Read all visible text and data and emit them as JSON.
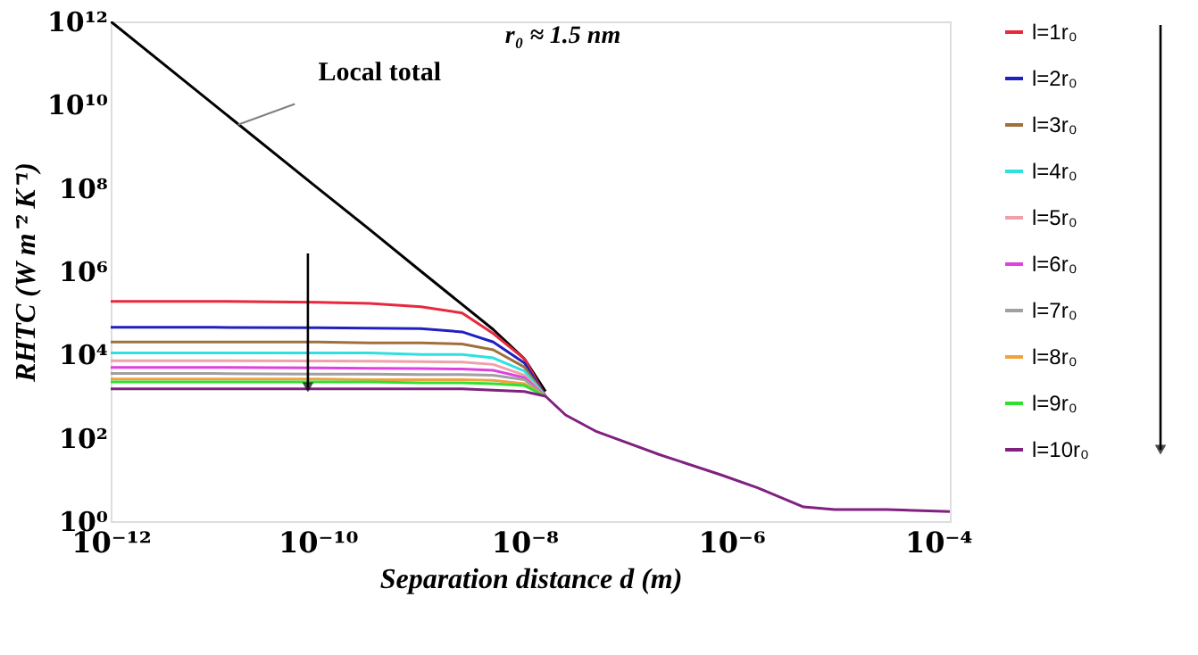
{
  "chart_data": {
    "type": "line",
    "xlabel": "Separation distance d (m)",
    "ylabel": "RHTC (W m⁻² K⁻¹)",
    "annotations": [
      "r₀ ≈ 1.5 nm",
      {
        "text": "Local total",
        "x": 1.7e-11,
        "y": 3300000000.0
      }
    ],
    "x": [
      1e-12,
      1e-11,
      1e-10,
      3.2e-10,
      1e-09,
      2.5e-09,
      5e-09,
      1e-08,
      1.6e-08,
      2.5e-08,
      5e-08,
      2e-07,
      7.9e-07,
      1.8e-06,
      5e-06,
      1e-05,
      3.2e-05,
      0.00013
    ],
    "log": "xy",
    "xlim": [
      1e-12,
      0.00013
    ],
    "ylim": [
      1,
      1000000000000.0
    ],
    "xticks": [
      {
        "value": 1e-12,
        "label": "10⁻¹²"
      },
      {
        "value": 1e-10,
        "label": "10⁻¹⁰"
      },
      {
        "value": 1e-08,
        "label": "10⁻⁸"
      },
      {
        "value": 1e-06,
        "label": "10⁻⁶"
      },
      {
        "value": 0.0001,
        "label": "10⁻⁴"
      }
    ],
    "yticks": [
      {
        "value": 1,
        "label": "10⁰"
      },
      {
        "value": 100,
        "label": "10²"
      },
      {
        "value": 10000.0,
        "label": "10⁴"
      },
      {
        "value": 1000000.0,
        "label": "10⁶"
      },
      {
        "value": 100000000.0,
        "label": "10⁸"
      },
      {
        "value": 10000000000.0,
        "label": "10¹⁰"
      },
      {
        "value": 1000000000000.0,
        "label": "10¹²"
      }
    ],
    "grid": false,
    "legend": "right",
    "line_style": "solid",
    "marker": "none",
    "series": [
      {
        "color": "#000000",
        "values": [
          1000000000000.0,
          10000000000.0,
          100000000.0,
          10000000.0,
          1000000.0,
          160000.0,
          40000.0,
          7900.0,
          1300.0,
          null,
          null,
          null,
          null,
          null,
          null,
          null,
          null,
          null
        ]
      },
      {
        "name": "l=1r₀",
        "color": "#e8283c",
        "values": [
          190000.0,
          190000.0,
          180000.0,
          170000.0,
          140000.0,
          100000.0,
          32000.0,
          7900.0,
          1000.0,
          null,
          null,
          null,
          null,
          null,
          null,
          null,
          null,
          null
        ]
      },
      {
        "name": "l=2r₀",
        "color": "#2020c0",
        "values": [
          45000.0,
          45000.0,
          44000.0,
          43000.0,
          42000.0,
          35000.0,
          20000.0,
          6300.0,
          1000.0,
          null,
          null,
          null,
          null,
          null,
          null,
          null,
          null,
          null
        ]
      },
      {
        "name": "l=3r₀",
        "color": "#a0703c",
        "values": [
          20000.0,
          20000.0,
          20000.0,
          19000.0,
          19000.0,
          18000.0,
          13000.0,
          5000.0,
          1000.0,
          null,
          null,
          null,
          null,
          null,
          null,
          null,
          null,
          null
        ]
      },
      {
        "name": "l=4r₀",
        "color": "#30e0e0",
        "values": [
          11000.0,
          11000.0,
          11000.0,
          11000.0,
          10000.0,
          10000.0,
          8300.0,
          4000.0,
          1000.0,
          null,
          null,
          null,
          null,
          null,
          null,
          null,
          null,
          null
        ]
      },
      {
        "name": "l=5r₀",
        "color": "#f0a0a8",
        "values": [
          7100.0,
          7100.0,
          7000.0,
          6900.0,
          6800.0,
          6600.0,
          5800.0,
          3200.0,
          1000.0,
          null,
          null,
          null,
          null,
          null,
          null,
          null,
          null,
          null
        ]
      },
      {
        "name": "l=6r₀",
        "color": "#e040e0",
        "values": [
          4900.0,
          4900.0,
          4800.0,
          4700.0,
          4600.0,
          4500.0,
          4200.0,
          2800.0,
          1000.0,
          null,
          null,
          null,
          null,
          null,
          null,
          null,
          null,
          null
        ]
      },
      {
        "name": "l=7r₀",
        "color": "#a0a0a0",
        "values": [
          3500.0,
          3500.0,
          3400.0,
          3400.0,
          3300.0,
          3300.0,
          3200.0,
          2500.0,
          1000.0,
          null,
          null,
          null,
          null,
          null,
          null,
          null,
          null,
          null
        ]
      },
      {
        "name": "l=8r₀",
        "color": "#f0a040",
        "values": [
          2600.0,
          2600.0,
          2600.0,
          2500.0,
          2500.0,
          2500.0,
          2400.0,
          2000.0,
          1000.0,
          null,
          null,
          null,
          null,
          null,
          null,
          null,
          null,
          null
        ]
      },
      {
        "name": "l=9r₀",
        "color": "#30e030",
        "values": [
          2200.0,
          2200.0,
          2200.0,
          2200.0,
          2100.0,
          2100.0,
          2000.0,
          1800.0,
          1000.0,
          null,
          null,
          null,
          null,
          null,
          null,
          null,
          null,
          null
        ]
      },
      {
        "name": "l=10r₀",
        "color": "#802080",
        "values": [
          1500.0,
          1500.0,
          1500.0,
          1500.0,
          1500.0,
          1500.0,
          1400.0,
          1300.0,
          1000.0,
          355,
          141,
          40,
          13,
          6.3,
          2.2,
          1.9,
          1.9,
          1.7
        ]
      }
    ]
  }
}
